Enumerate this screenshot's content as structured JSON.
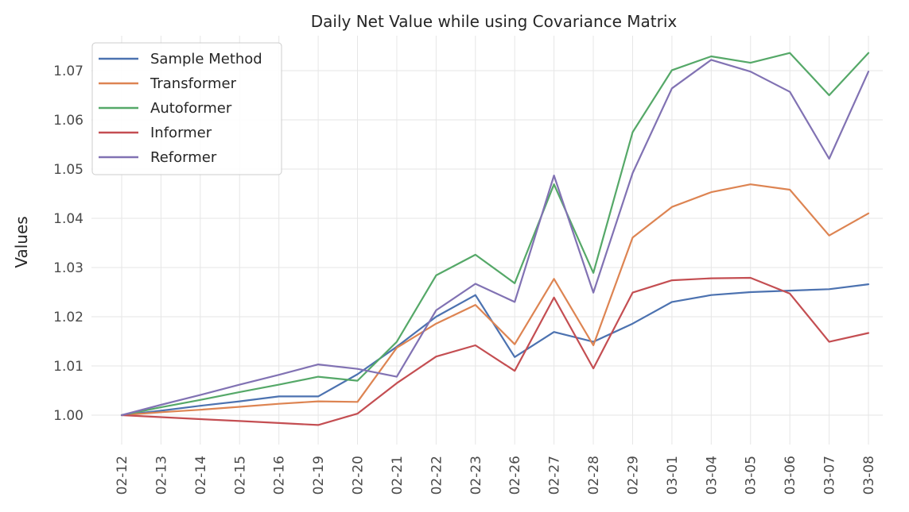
{
  "chart_data": {
    "type": "line",
    "title": "Daily Net Value while using Covariance Matrix",
    "xlabel": "",
    "ylabel": "Values",
    "categories": [
      "02-12",
      "02-13",
      "02-14",
      "02-15",
      "02-16",
      "02-19",
      "02-20",
      "02-21",
      "02-22",
      "02-23",
      "02-26",
      "02-27",
      "02-28",
      "02-29",
      "03-01",
      "03-04",
      "03-05",
      "03-06",
      "03-07",
      "03-08"
    ],
    "y_ticks": [
      1.0,
      1.01,
      1.02,
      1.03,
      1.04,
      1.05,
      1.06,
      1.07
    ],
    "y_tick_labels": [
      "1.00",
      "1.01",
      "1.02",
      "1.03",
      "1.04",
      "1.05",
      "1.06",
      "1.07"
    ],
    "ylim": [
      0.9945,
      1.0765
    ],
    "grid": true,
    "legend_position": "upper-left",
    "series": [
      {
        "name": "Sample Method",
        "color": "#4c72b0",
        "values": [
          1.0,
          1.0009,
          1.0019,
          1.0028,
          1.0038,
          1.0038,
          1.0083,
          1.0139,
          1.02,
          1.0244,
          1.0118,
          1.0169,
          1.0149,
          1.0186,
          1.023,
          1.0244,
          1.025,
          1.0253,
          1.0256,
          1.0266
        ]
      },
      {
        "name": "Transformer",
        "color": "#dd8452",
        "values": [
          1.0,
          1.0006,
          1.0011,
          1.0017,
          1.0023,
          1.0028,
          1.0027,
          1.0137,
          1.0186,
          1.0224,
          1.0144,
          1.0277,
          1.0142,
          1.0361,
          1.0423,
          1.0453,
          1.0469,
          1.0458,
          1.0365,
          1.041
        ]
      },
      {
        "name": "Autoformer",
        "color": "#55a868",
        "values": [
          1.0,
          1.0016,
          1.0031,
          1.0047,
          1.0062,
          1.0078,
          1.007,
          1.0149,
          1.0284,
          1.0326,
          1.0268,
          1.0469,
          1.0289,
          1.0575,
          1.0701,
          1.0729,
          1.0716,
          1.0736,
          1.065,
          1.0736
        ]
      },
      {
        "name": "Informer",
        "color": "#c44e52",
        "values": [
          1.0,
          0.9996,
          0.9992,
          0.9988,
          0.9984,
          0.998,
          1.0003,
          1.0065,
          1.0119,
          1.0142,
          1.009,
          1.0239,
          1.0095,
          1.0249,
          1.0274,
          1.0278,
          1.0279,
          1.0247,
          1.0149,
          1.0167
        ]
      },
      {
        "name": "Reformer",
        "color": "#8172b3",
        "values": [
          1.0,
          1.0021,
          1.0041,
          1.0062,
          1.0082,
          1.0103,
          1.0094,
          1.0078,
          1.0213,
          1.0267,
          1.023,
          1.0487,
          1.0249,
          1.0492,
          1.0664,
          1.0722,
          1.0698,
          1.0657,
          1.0521,
          1.0698
        ]
      }
    ]
  }
}
